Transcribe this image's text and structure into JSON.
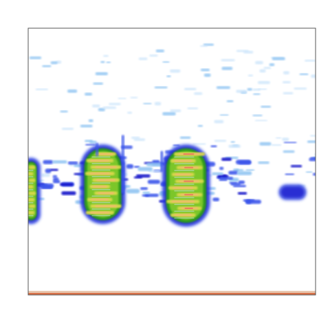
{
  "chart_data": {
    "type": "heatmap",
    "title": "",
    "xlabel": "",
    "ylabel": "",
    "grid": false,
    "legend": "none",
    "colormap": [
      "#ffffff",
      "#cfe6fb",
      "#8fc4f2",
      "#3a55ea",
      "#1010c8",
      "#2f9a1e",
      "#7bc62a",
      "#d8d84a",
      "#f2b870",
      "#e9785a"
    ],
    "baseline_color": "#d9734a",
    "blobs": [
      {
        "name": "syllable-left-edge",
        "x": 0.01,
        "y": 0.28,
        "w": 0.04,
        "h": 0.22,
        "peak": 7
      },
      {
        "name": "syllable-1",
        "x": 0.26,
        "y": 0.28,
        "w": 0.13,
        "h": 0.27,
        "peak": 8
      },
      {
        "name": "syllable-2",
        "x": 0.55,
        "y": 0.27,
        "w": 0.14,
        "h": 0.28,
        "peak": 9
      },
      {
        "name": "faint-note",
        "x": 0.92,
        "y": 0.37,
        "w": 0.07,
        "h": 0.03,
        "peak": 3
      }
    ]
  }
}
